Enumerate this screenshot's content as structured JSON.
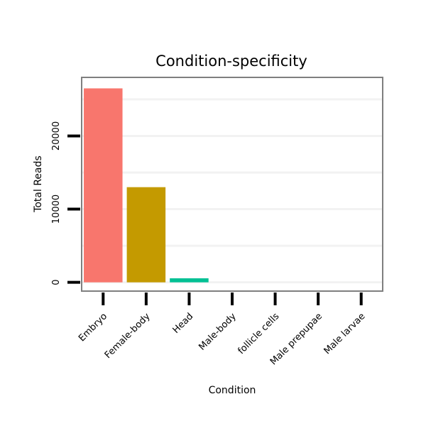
{
  "chart_data": {
    "type": "bar",
    "title": "Condition-specificity",
    "xlabel": "Condition",
    "ylabel": "Total Reads",
    "categories": [
      "Embryo",
      "Female-body",
      "Head",
      "Male-body",
      "follicle cells",
      "Male prepupae",
      "Male larvae"
    ],
    "values": [
      26500,
      13000,
      550,
      0,
      0,
      0,
      0
    ],
    "colors": [
      "#F8766D",
      "#C49A00",
      "#00C094",
      "#00B6EB",
      "#A58AFF",
      "#FB61D7",
      "#53B400"
    ],
    "yticks": [
      0,
      10000,
      20000
    ],
    "ylim": [
      -1200,
      28000
    ],
    "grid": true,
    "legend": "none"
  }
}
